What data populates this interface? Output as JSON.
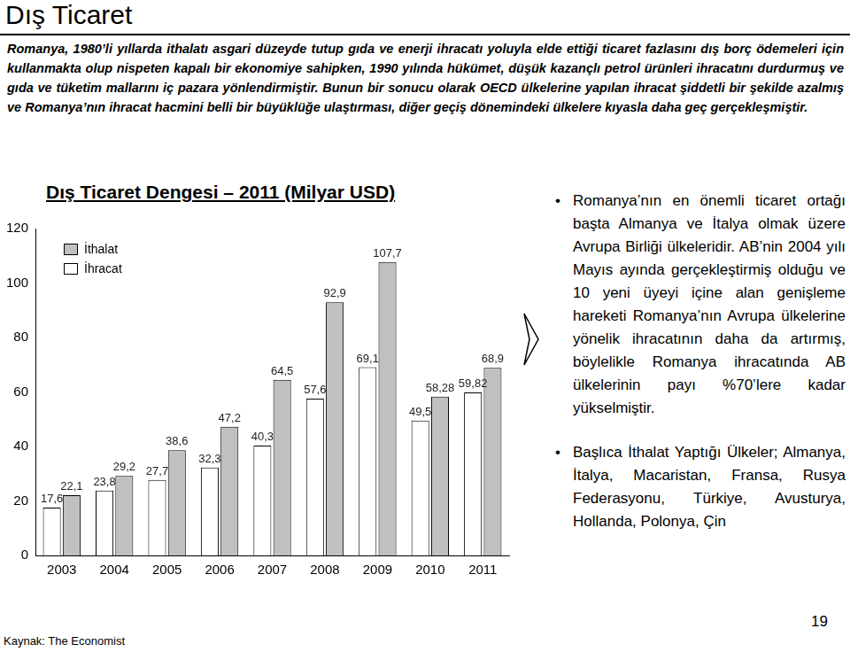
{
  "header": {
    "title": "Dış Ticaret"
  },
  "intro": "Romanya, 1980’li yıllarda ithalatı asgari düzeyde tutup gıda ve enerji ihracatı yoluyla elde ettiği ticaret fazlasını dış borç ödemeleri için kullanmakta olup nispeten kapalı bir ekonomiye sahipken, 1990 yılında hükümet, düşük kazançlı petrol ürünleri ihracatını durdurmuş ve gıda ve tüketim mallarını iç pazara yönlendirmiştir. Bunun bir sonucu olarak OECD ülkelerine yapılan ihracat şiddetli bir şekilde azalmış ve Romanya’nın ihracat hacmini belli bir büyüklüğe ulaştırması, diğer geçiş dönemindeki ülkelere kıyasla daha geç gerçekleşmiştir.",
  "chart_data": {
    "type": "bar",
    "title": "Dış Ticaret Dengesi – 2011 (Milyar USD)",
    "categories": [
      "2003",
      "2004",
      "2005",
      "2006",
      "2007",
      "2008",
      "2009",
      "2010",
      "2011"
    ],
    "series": [
      {
        "name": "İthalat",
        "color": "#c0c0c0",
        "values": [
          22.1,
          29.2,
          38.6,
          47.2,
          64.5,
          92.9,
          107.7,
          58.28,
          68.9
        ],
        "value_labels": [
          "22,1",
          "29,2",
          "38,6",
          "47,2",
          "64,5",
          "92,9",
          "107,7",
          "58,28",
          "68,9"
        ]
      },
      {
        "name": "İhracat",
        "color": "#ffffff",
        "values": [
          17.6,
          23.8,
          27.7,
          32.3,
          40.3,
          57.6,
          69.1,
          49.5,
          59.82
        ],
        "value_labels": [
          "17,6",
          "23,8",
          "27,7",
          "32,3",
          "40,3",
          "57,6",
          "69,1",
          "49,5",
          "59,82"
        ]
      }
    ],
    "ylim": [
      0,
      120
    ],
    "yticks": [
      0,
      20,
      40,
      60,
      80,
      100,
      120
    ],
    "grid": false,
    "legend": "upper left",
    "data_labels": true
  },
  "bullets": [
    "Romanya’nın en önemli ticaret ortağı başta Almanya ve İtalya olmak üzere Avrupa Birliği ülkeleridir. AB’nin 2004 yılı Mayıs ayında gerçekleştirmiş olduğu ve 10 yeni üyeyi içine alan genişleme hareketi Romanya’nın Avrupa ülkelerine yönelik ihracatının daha da artırmış, böylelikle Romanya ihracatında AB ülkelerinin payı %70’lere kadar yükselmiştir.",
    "Başlıca İthalat Yaptığı Ülkeler; Almanya, İtalya, Macaristan, Fransa, Rusya Federasyonu, Türkiye, Avusturya, Hollanda, Polonya, Çin"
  ],
  "source": "Kaynak: The Economist",
  "page_number": "19"
}
